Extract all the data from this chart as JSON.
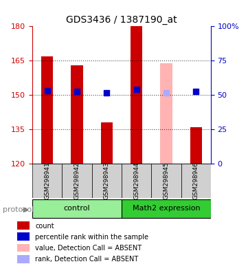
{
  "title": "GDS3436 / 1387190_at",
  "samples": [
    "GSM298941",
    "GSM298942",
    "GSM298943",
    "GSM298944",
    "GSM298945",
    "GSM298946"
  ],
  "bar_bottom": 120,
  "bar_values": [
    167,
    163,
    138,
    180,
    164,
    136
  ],
  "bar_colors": [
    "#cc0000",
    "#cc0000",
    "#cc0000",
    "#cc0000",
    "#ffb3b3",
    "#cc0000"
  ],
  "percentile_values": [
    152,
    151.5,
    151,
    152.5,
    151,
    151.5
  ],
  "percentile_colors": [
    "#0000cc",
    "#0000cc",
    "#0000cc",
    "#0000cc",
    "#aaaaff",
    "#0000cc"
  ],
  "ylim_left": [
    120,
    180
  ],
  "yticks_left": [
    120,
    135,
    150,
    165,
    180
  ],
  "ytick_labels_right": [
    "0",
    "25",
    "50",
    "75",
    "100%"
  ],
  "groups": [
    {
      "label": "control",
      "start": 0,
      "end": 3,
      "color": "#99ee99"
    },
    {
      "label": "Math2 expression",
      "start": 3,
      "end": 6,
      "color": "#33cc33"
    }
  ],
  "protocol_label": "protocol",
  "legend_items": [
    {
      "color": "#cc0000",
      "label": "count"
    },
    {
      "color": "#0000cc",
      "label": "percentile rank within the sample"
    },
    {
      "color": "#ffb3b3",
      "label": "value, Detection Call = ABSENT"
    },
    {
      "color": "#aaaaff",
      "label": "rank, Detection Call = ABSENT"
    }
  ],
  "axis_color_left": "#cc0000",
  "axis_color_right": "#0000cc",
  "bar_width": 0.4,
  "percentile_size": 30
}
